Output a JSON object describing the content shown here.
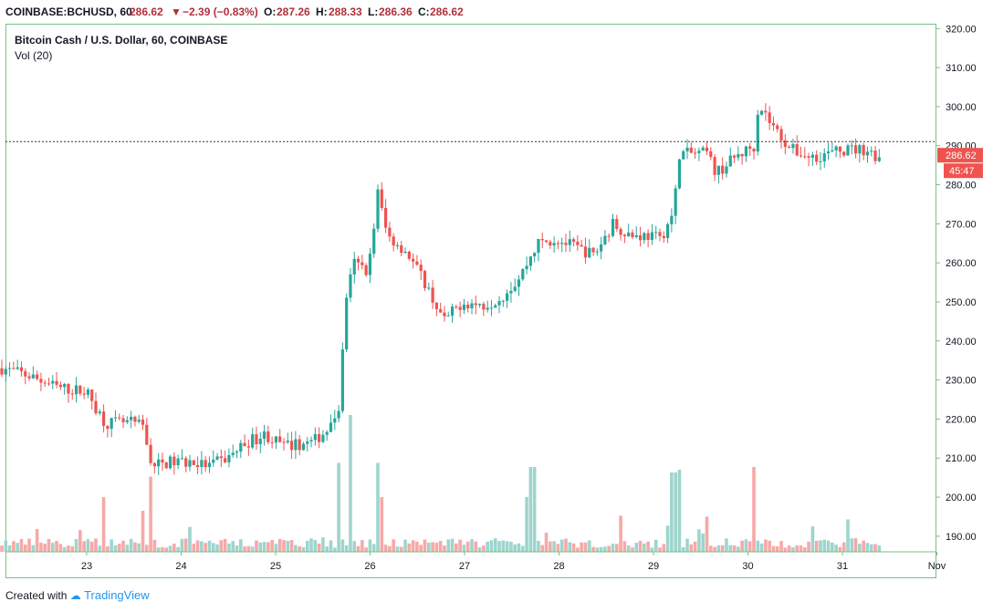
{
  "header": {
    "symbol": "COINBASE:BCHUSD, 60",
    "last": "286.62",
    "change": "−2.39 (−0.83%)",
    "o_label": "O:",
    "o": "287.26",
    "h_label": "H:",
    "h": "288.33",
    "l_label": "L:",
    "l": "286.36",
    "c_label": "C:",
    "c": "286.62"
  },
  "legend": {
    "title": "Bitcoin Cash / U.S. Dollar, 60, COINBASE",
    "volume": "Vol (20)"
  },
  "price_scale": {
    "ticks": [
      "320.00",
      "310.00",
      "300.00",
      "290.00",
      "280.00",
      "270.00",
      "260.00",
      "250.00",
      "240.00",
      "230.00",
      "220.00",
      "210.00",
      "200.00",
      "190.00"
    ],
    "last_price": "286.62",
    "countdown": "45:47"
  },
  "time_scale": {
    "ticks": [
      "23",
      "24",
      "25",
      "26",
      "27",
      "28",
      "29",
      "30",
      "31",
      "Nov"
    ]
  },
  "footer": {
    "created": "Created with",
    "brand": "TradingView"
  },
  "colors": {
    "up": "#26a69a",
    "down": "#ef5350",
    "up_vol": "#9ed5cd",
    "down_vol": "#f6a9a7",
    "axis": "#7bbf85",
    "last_tag": "#ef5350"
  },
  "chart_data": {
    "type": "candlestick",
    "interval": "60 minutes",
    "ylim": [
      186,
      321
    ],
    "x_day_labels": [
      "23",
      "24",
      "25",
      "26",
      "27",
      "28",
      "29",
      "30",
      "31",
      "Nov"
    ],
    "close_path": [
      {
        "day": 22.0,
        "price": 233
      },
      {
        "day": 22.3,
        "price": 231
      },
      {
        "day": 22.6,
        "price": 228
      },
      {
        "day": 22.9,
        "price": 227
      },
      {
        "day": 23.1,
        "price": 219
      },
      {
        "day": 23.4,
        "price": 219
      },
      {
        "day": 23.5,
        "price": 218
      },
      {
        "day": 23.6,
        "price": 208
      },
      {
        "day": 23.8,
        "price": 209
      },
      {
        "day": 24.0,
        "price": 209
      },
      {
        "day": 24.2,
        "price": 208
      },
      {
        "day": 24.4,
        "price": 210
      },
      {
        "day": 24.6,
        "price": 214
      },
      {
        "day": 24.8,
        "price": 216
      },
      {
        "day": 25.0,
        "price": 213
      },
      {
        "day": 25.3,
        "price": 214
      },
      {
        "day": 25.5,
        "price": 218
      },
      {
        "day": 25.6,
        "price": 224
      },
      {
        "day": 25.65,
        "price": 250
      },
      {
        "day": 25.75,
        "price": 260
      },
      {
        "day": 25.9,
        "price": 258
      },
      {
        "day": 26.0,
        "price": 278
      },
      {
        "day": 26.1,
        "price": 267
      },
      {
        "day": 26.3,
        "price": 263
      },
      {
        "day": 26.5,
        "price": 255
      },
      {
        "day": 26.7,
        "price": 245
      },
      {
        "day": 26.9,
        "price": 250
      },
      {
        "day": 27.1,
        "price": 249
      },
      {
        "day": 27.3,
        "price": 251
      },
      {
        "day": 27.5,
        "price": 256
      },
      {
        "day": 27.7,
        "price": 265
      },
      {
        "day": 27.9,
        "price": 266
      },
      {
        "day": 28.1,
        "price": 264
      },
      {
        "day": 28.3,
        "price": 262
      },
      {
        "day": 28.5,
        "price": 270
      },
      {
        "day": 28.7,
        "price": 267
      },
      {
        "day": 28.9,
        "price": 267
      },
      {
        "day": 29.0,
        "price": 266
      },
      {
        "day": 29.15,
        "price": 273
      },
      {
        "day": 29.2,
        "price": 288
      },
      {
        "day": 29.5,
        "price": 288
      },
      {
        "day": 29.6,
        "price": 283
      },
      {
        "day": 29.8,
        "price": 287
      },
      {
        "day": 30.0,
        "price": 290
      },
      {
        "day": 30.05,
        "price": 301
      },
      {
        "day": 30.2,
        "price": 295
      },
      {
        "day": 30.4,
        "price": 289
      },
      {
        "day": 30.6,
        "price": 287
      },
      {
        "day": 30.8,
        "price": 288
      },
      {
        "day": 31.0,
        "price": 289
      },
      {
        "day": 31.2,
        "price": 289
      },
      {
        "day": 31.35,
        "price": 286.62
      }
    ],
    "volume_peaks": [
      {
        "day": 23.1,
        "rel": 0.4
      },
      {
        "day": 23.5,
        "rel": 0.3
      },
      {
        "day": 23.6,
        "rel": 0.55
      },
      {
        "day": 25.6,
        "rel": 0.65
      },
      {
        "day": 25.7,
        "rel": 1.0
      },
      {
        "day": 26.0,
        "rel": 0.65
      },
      {
        "day": 26.05,
        "rel": 0.4
      },
      {
        "day": 27.6,
        "rel": 0.4
      },
      {
        "day": 27.65,
        "rel": 0.62
      },
      {
        "day": 29.15,
        "rel": 0.58
      },
      {
        "day": 29.2,
        "rel": 0.6
      },
      {
        "day": 30.0,
        "rel": 0.62
      }
    ]
  }
}
